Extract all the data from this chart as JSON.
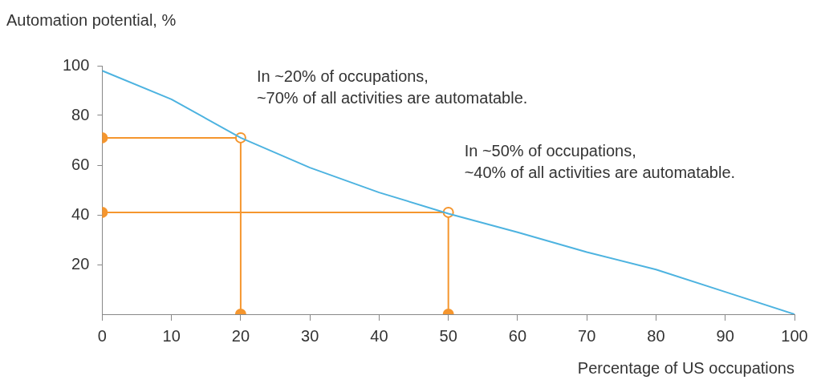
{
  "chart_data": {
    "type": "line",
    "xlabel": "Percentage of US occupations",
    "ylabel": "Automation potential, %",
    "series": [
      {
        "color": "#4db3e0",
        "x": [
          0,
          10,
          20,
          30,
          40,
          50,
          60,
          70,
          80,
          90,
          100
        ],
        "values": [
          98,
          86.5,
          71,
          59,
          49,
          40.5,
          33,
          25,
          18,
          9,
          0
        ],
        "marker": "none"
      },
      {
        "color": "#f5962e",
        "x": [
          0,
          20,
          20
        ],
        "values": [
          71,
          71,
          0
        ],
        "marker": "circle"
      },
      {
        "color": "#f5962e",
        "x": [
          0,
          50,
          50
        ],
        "values": [
          41,
          41,
          0
        ],
        "marker": "circle"
      }
    ],
    "xlim": [
      0,
      100
    ],
    "xticks": [
      0,
      10,
      20,
      30,
      40,
      50,
      60,
      70,
      80,
      90,
      100
    ],
    "ylim": [
      0,
      100
    ],
    "yticks": [
      20,
      40,
      60,
      80,
      100
    ],
    "grid": false,
    "legend": false,
    "annotations": [
      {
        "text": "In ~20% of occupations,\n~70% of all activities are automatable.",
        "x": 20,
        "y": 71
      },
      {
        "text": "In ~50% of occupations,\n~40% of all activities are automatable.",
        "x": 50,
        "y": 41
      }
    ]
  }
}
